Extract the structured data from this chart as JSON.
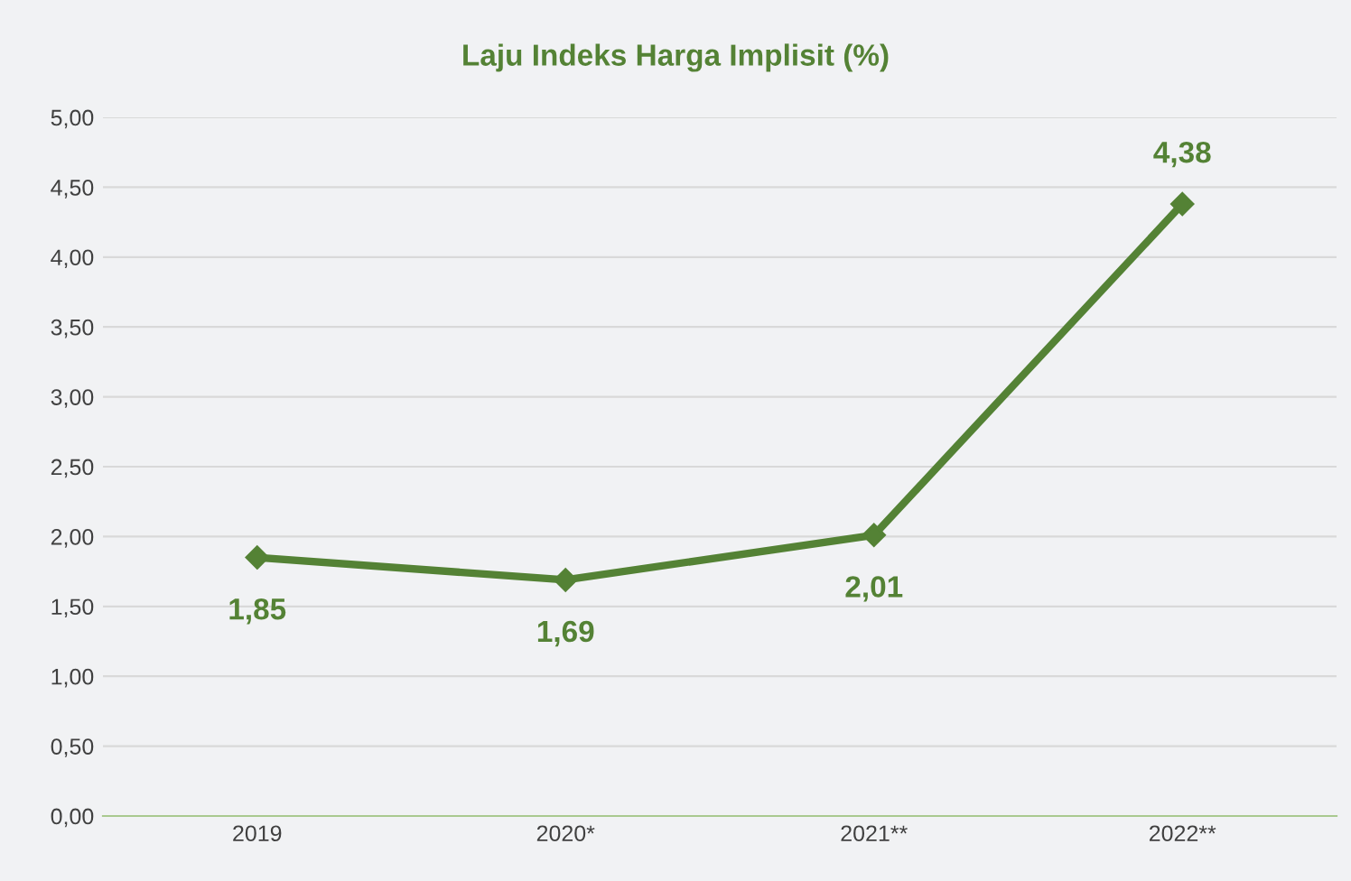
{
  "chart_data": {
    "type": "line",
    "title": "Laju Indeks Harga Implisit (%)",
    "categories": [
      "2019",
      "2020*",
      "2021**",
      "2022**"
    ],
    "series": [
      {
        "color": "#548235",
        "values": [
          1.85,
          1.69,
          2.01,
          4.38
        ],
        "value_labels": [
          "1,85",
          "1,69",
          "2,01",
          "4,38"
        ]
      }
    ],
    "ylim": [
      0,
      5
    ],
    "yticks": [
      {
        "value": 0,
        "label": "0,00"
      },
      {
        "value": 0.5,
        "label": "0,50"
      },
      {
        "value": 1,
        "label": "1,00"
      },
      {
        "value": 1.5,
        "label": "1,50"
      },
      {
        "value": 2,
        "label": "2,00"
      },
      {
        "value": 2.5,
        "label": "2,50"
      },
      {
        "value": 3,
        "label": "3,00"
      },
      {
        "value": 3.5,
        "label": "3,50"
      },
      {
        "value": 4,
        "label": "4,00"
      },
      {
        "value": 4.5,
        "label": "4,50"
      },
      {
        "value": 5,
        "label": "5,00"
      }
    ],
    "grid": "y",
    "marker": "diamond",
    "line_style": "solid",
    "legend": false
  }
}
